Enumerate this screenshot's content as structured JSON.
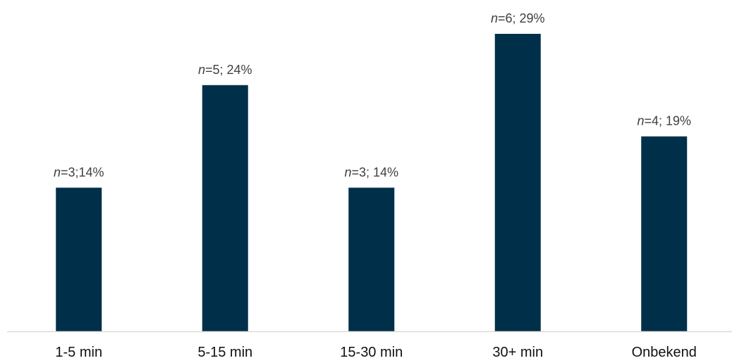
{
  "chart_data": {
    "type": "bar",
    "categories": [
      "1-5 min",
      "5-15 min",
      "15-30 min",
      "30+ min",
      "Onbekend"
    ],
    "values": [
      14,
      24,
      14,
      29,
      19
    ],
    "counts": [
      3,
      5,
      3,
      6,
      4
    ],
    "data_labels": [
      {
        "prefix": "n",
        "rest": "=3;14%"
      },
      {
        "prefix": "n",
        "rest": "=5; 24%"
      },
      {
        "prefix": "n",
        "rest": "=3; 14%"
      },
      {
        "prefix": "n",
        "rest": "=6; 29%"
      },
      {
        "prefix": "n",
        "rest": "=4; 19%"
      }
    ],
    "title": "",
    "xlabel": "",
    "ylabel": "",
    "ylim": [
      0,
      29
    ],
    "grid": false,
    "legend": "none",
    "bar_color": "#003049",
    "axis_color": "#d9d9d9"
  }
}
